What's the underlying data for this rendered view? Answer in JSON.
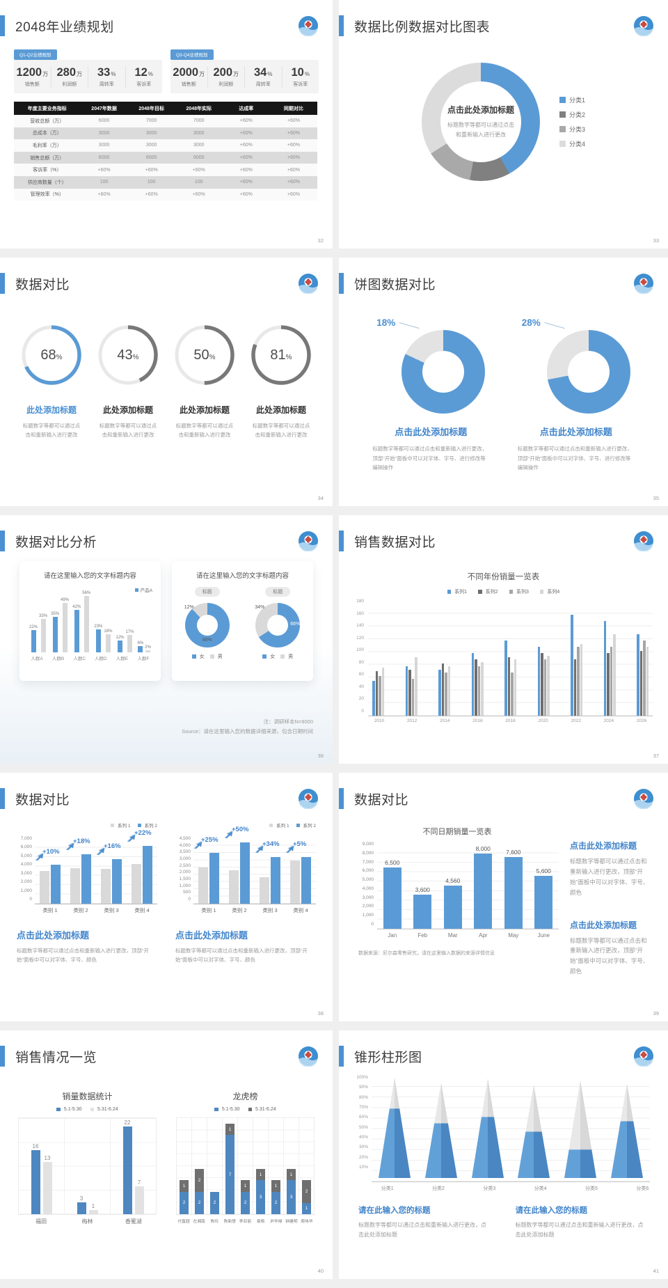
{
  "page_bg": "#EFEFEF",
  "accent_color": "#5B9BD5",
  "slides": [
    {
      "num": "32",
      "type": "stats_table",
      "title": "2048年业绩规划",
      "stat_groups": [
        {
          "tab": "Q1-Q2业绩规划",
          "stats": [
            {
              "value": "1200",
              "unit": "万",
              "label": "销售额"
            },
            {
              "value": "280",
              "unit": "万",
              "label": "利润额"
            },
            {
              "value": "33",
              "unit": "%",
              "label": "周转率"
            },
            {
              "value": "12",
              "unit": "%",
              "label": "客诉率"
            }
          ]
        },
        {
          "tab": "Q3-Q4业绩规划",
          "stats": [
            {
              "value": "2000",
              "unit": "万",
              "label": "销售额"
            },
            {
              "value": "200",
              "unit": "万",
              "label": "利润额"
            },
            {
              "value": "34",
              "unit": "%",
              "label": "周转率"
            },
            {
              "value": "10",
              "unit": "%",
              "label": "客诉率"
            }
          ]
        }
      ],
      "table": {
        "headers": [
          "年度主要业务指标",
          "2047年数据",
          "2048年目标",
          "2048年实际",
          "达成率",
          "同期对比"
        ],
        "rows": [
          [
            "营收总额（万）",
            "6000",
            "7000",
            "7000",
            "+60%",
            "+60%"
          ],
          [
            "总成本（万）",
            "3000",
            "3000",
            "3000",
            "+60%",
            "+60%"
          ],
          [
            "毛利率（万）",
            "3000",
            "3000",
            "3000",
            "+60%",
            "+60%"
          ],
          [
            "销售总额（万）",
            "6000",
            "6000",
            "6000",
            "+60%",
            "+60%"
          ],
          [
            "客诉率（%）",
            "+60%",
            "+60%",
            "+60%",
            "+60%",
            "+60%"
          ],
          [
            "供应商数量（个）",
            "100",
            "100",
            "100",
            "+60%",
            "+60%"
          ],
          [
            "管理效率（%）",
            "+60%",
            "+60%",
            "+60%",
            "+60%",
            "+60%"
          ]
        ]
      }
    },
    {
      "num": "33",
      "type": "donut_legend",
      "title": "数据比例数据对比图表",
      "center_title": "点击此处添加标题",
      "center_text": "标题数字等都可以通过点击和重新输入进行更改",
      "chart_data": {
        "type": "pie",
        "segments": [
          {
            "label": "分类1",
            "value": 42,
            "color": "#5B9BD5"
          },
          {
            "label": "分类2",
            "value": 11,
            "color": "#808080"
          },
          {
            "label": "分类3",
            "value": 13,
            "color": "#A9A9A9"
          },
          {
            "label": "分类4",
            "value": 34,
            "color": "#DCDCDC"
          }
        ]
      }
    },
    {
      "num": "34",
      "type": "gauges",
      "title": "数据对比",
      "item_title": "此处添加标题",
      "item_text": "标题数字等都可以通过点击和重新输入进行更改",
      "chart_data": {
        "type": "gauge",
        "values": [
          68,
          43,
          50,
          81
        ],
        "colors": [
          "#5B9BD5",
          "#787878",
          "#787878",
          "#787878"
        ]
      }
    },
    {
      "num": "35",
      "type": "two_donuts",
      "title": "饼图数据对比",
      "item_title": "点击此处添加标题",
      "item_text": "标题数字等都可以通过点击和重新输入进行更改，顶部“开始”面板中可以对字体、字号、进行修改等编辑操作",
      "chart_data": {
        "type": "pie",
        "donuts": [
          {
            "label": "18%",
            "gray_pct": 18,
            "blue_pct": 82
          },
          {
            "label": "28%",
            "gray_pct": 28,
            "blue_pct": 72
          }
        ]
      }
    },
    {
      "num": "36",
      "type": "analysis_cards",
      "title": "数据对比分析",
      "card_title": "请在这里输入您的文字标题内容",
      "bar_chart": {
        "type": "bar",
        "legend": "产品A",
        "categories": [
          "人群A",
          "人群B",
          "人群C",
          "人群D",
          "人群E",
          "人群F"
        ],
        "series": [
          {
            "name": "产品A",
            "color": "#5B9BD5",
            "values": [
              22,
              35,
              42,
              23,
              12,
              6
            ]
          },
          {
            "name": "产品B",
            "color": "#D9D9D9",
            "values": [
              33,
              49,
              56,
              18,
              17,
              2
            ]
          }
        ]
      },
      "donut_chart": {
        "type": "pie",
        "badge": "标题",
        "legend": [
          "女",
          "男"
        ],
        "donuts": [
          {
            "gray_label": "12%",
            "blue_label": "88%",
            "gray_pct": 12,
            "blue_pct": 88
          },
          {
            "gray_label": "34%",
            "blue_label": "66%",
            "gray_pct": 34,
            "blue_pct": 66
          }
        ]
      },
      "note1": "注：调研样本N=9000",
      "note2": "Source：请在这里输入您的数据详细来源，包含日期时间"
    },
    {
      "num": "37",
      "type": "grouped_bars",
      "title": "销售数据对比",
      "chart_data": {
        "type": "bar",
        "title": "不同年份销量一览表",
        "ymax": 180,
        "yticks": [
          "180",
          "160",
          "140",
          "120",
          "100",
          "80",
          "60",
          "40",
          "20",
          "0"
        ],
        "categories": [
          "2010",
          "2012",
          "2014",
          "2016",
          "2018",
          "2020",
          "2022",
          "2024",
          "2026"
        ],
        "series": [
          {
            "name": "系列1",
            "color": "#5B9BD5",
            "values": [
              55,
              78,
              72,
              98,
              118,
              108,
              158,
              148,
              128
            ]
          },
          {
            "name": "系列2",
            "color": "#6E6E6E",
            "values": [
              70,
              72,
              82,
              88,
              92,
              98,
              88,
              98,
              102
            ]
          },
          {
            "name": "系列3",
            "color": "#A6A6A6",
            "values": [
              62,
              58,
              68,
              78,
              68,
              88,
              108,
              108,
              118
            ]
          },
          {
            "name": "系列4",
            "color": "#D6D6D6",
            "values": [
              75,
              92,
              78,
              84,
              88,
              94,
              112,
              128,
              108
            ]
          }
        ]
      }
    },
    {
      "num": "38",
      "type": "growth_bars",
      "title": "数据对比",
      "legend": [
        {
          "label": "系列 1",
          "color": "#D9D9D9"
        },
        {
          "label": "系列 2",
          "color": "#5B9BD5"
        }
      ],
      "blocks": [
        {
          "title": "点击此处添加标题",
          "text": "标题数字等都可以通过点击和重新输入进行更改，顶部“开始”面板中可以对字体、字号、颜色",
          "chart_data": {
            "type": "bar",
            "ymax": 7000,
            "yticks": [
              "7,000",
              "6,000",
              "5,000",
              "4,000",
              "3,000",
              "2,000",
              "1,000",
              "0"
            ],
            "categories": [
              "类别 1",
              "类别 2",
              "类别 3",
              "类别 4"
            ],
            "series": [
              {
                "name": "系列 1",
                "color": "#D9D9D9",
                "values": [
                  3500,
                  3800,
                  3700,
                  4250
                ]
              },
              {
                "name": "系列 2",
                "color": "#5B9BD5",
                "values": [
                  4200,
                  5300,
                  4800,
                  6200
                ]
              }
            ],
            "growth_labels": [
              "+10%",
              "+18%",
              "+16%",
              "+22%"
            ]
          }
        },
        {
          "title": "点击此处添加标题",
          "text": "标题数字等都可以通过点击和重新输入进行更改，顶部“开始”面板中可以对字体、字号、颜色",
          "chart_data": {
            "type": "bar",
            "ymax": 4500,
            "yticks": [
              "4,500",
              "4,000",
              "3,500",
              "3,000",
              "2,500",
              "2,000",
              "1,500",
              "1,000",
              "500",
              "0"
            ],
            "categories": [
              "类别 1",
              "类别 2",
              "类别 3",
              "类别 4"
            ],
            "series": [
              {
                "name": "系列 1",
                "color": "#D9D9D9",
                "values": [
                  2500,
                  2300,
                  1800,
                  2950
                ]
              },
              {
                "name": "系列 2",
                "color": "#5B9BD5",
                "values": [
                  3500,
                  4200,
                  3200,
                  3200
                ]
              }
            ],
            "growth_labels": [
              "+25%",
              "+50%",
              "+34%",
              "+5%"
            ]
          }
        }
      ]
    },
    {
      "num": "39",
      "type": "bar_text",
      "title": "数据对比",
      "chart_data": {
        "type": "bar",
        "title": "不同日期销量一览表",
        "ymax": 9000,
        "yticks": [
          "9,000",
          "8,000",
          "7,000",
          "6,000",
          "5,000",
          "4,000",
          "3,000",
          "2,000",
          "1,000",
          "0"
        ],
        "categories": [
          "Jan",
          "Feb",
          "Mar",
          "Apr",
          "May",
          "June"
        ],
        "values": [
          6500,
          3600,
          4560,
          8000,
          7600,
          5600
        ],
        "value_labels": [
          "6,500",
          "3,600",
          "4,560",
          "8,000",
          "7,600",
          "5,600"
        ]
      },
      "note": "数据来源：尼尔森零售研究，请在这里输入数据的来源详情信息",
      "blocks": [
        {
          "title": "点击此处添加标题",
          "text": "标题数字等都可以通过点击和重新输入进行更改，顶部“开始”面板中可以对字体、字号、颜色"
        },
        {
          "title": "点击此处添加标题",
          "text": "标题数字等都可以通过点击和重新输入进行更改，顶部“开始”面板中可以对字体、字号、颜色"
        }
      ]
    },
    {
      "num": "40",
      "type": "dual_mini",
      "title": "销售情况一览",
      "left": {
        "chart_data": {
          "type": "bar",
          "title": "销量数据统计",
          "ymax": 24,
          "legend": [
            {
              "label": "5.1-5.30",
              "color": "#4E87C0"
            },
            {
              "label": "5.31-6.24",
              "color": "#E2E2E2"
            }
          ],
          "categories": [
            "福田",
            "梅林",
            "香蜜湖"
          ],
          "series": [
            {
              "name": "5.1-5.30",
              "color": "#4E87C0",
              "values": [
                16,
                3,
                22
              ]
            },
            {
              "name": "5.31-6.24",
              "color": "#E2E2E2",
              "values": [
                13,
                1,
                7
              ]
            }
          ]
        }
      },
      "right": {
        "chart_data": {
          "type": "bar",
          "title": "龙虎榜",
          "ymax": 8.5,
          "legend": [
            {
              "label": "5.1-5.30",
              "color": "#4E87C0"
            },
            {
              "label": "5.31-6.24",
              "color": "#6F6F6F"
            }
          ],
          "categories": [
            "付直超",
            "左湘南",
            "陈玲",
            "陈新慧",
            "李亚丽",
            "易栢",
            "尹华禄",
            "钟建明",
            "周伟华"
          ],
          "series": [
            {
              "name": "5.1-5.30",
              "color": "#4E87C0",
              "values": [
                2,
                2,
                2,
                7,
                2,
                3,
                2,
                3,
                1
              ]
            },
            {
              "name": "5.31-6.24",
              "color": "#6F6F6F",
              "values": [
                1,
                2,
                0,
                1,
                1,
                1,
                1,
                1,
                2
              ]
            }
          ]
        }
      }
    },
    {
      "num": "41",
      "type": "cones",
      "title": "锥形柱形图",
      "chart_data": {
        "type": "bar",
        "yticks": [
          "100%",
          "90%",
          "80%",
          "70%",
          "60%",
          "50%",
          "40%",
          "30%",
          "20%",
          "10%"
        ],
        "categories": [
          "分类1",
          "分类2",
          "分类3",
          "分类4",
          "分类5",
          "分类6"
        ],
        "cone_heights_pct": [
          96,
          91,
          95,
          89,
          93,
          90
        ],
        "blue_pct": [
          66,
          52,
          58,
          44,
          27,
          54
        ]
      },
      "blocks": [
        {
          "title": "请在此输入您的标题",
          "text": "标题数字等都可以通过点击和重新输入进行更改，点击此处添加标题"
        },
        {
          "title": "请在此输入您的标题",
          "text": "标题数字等都可以通过点击和重新输入进行更改，点击此处添加标题"
        }
      ]
    }
  ]
}
